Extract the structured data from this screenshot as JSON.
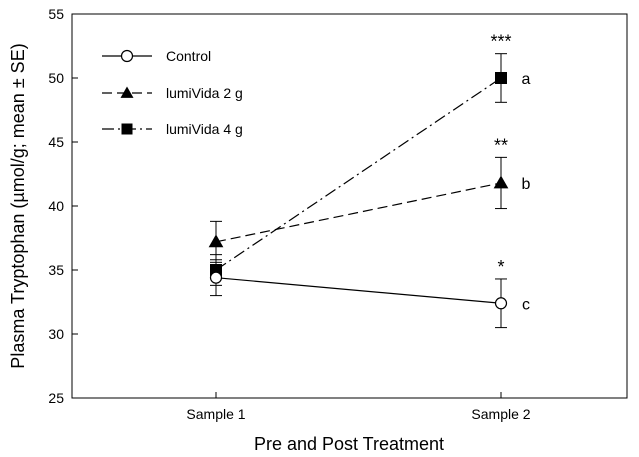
{
  "chart_data": {
    "type": "line",
    "title": "",
    "xlabel": "Pre and Post Treatment",
    "ylabel": "Plasma Tryptophan (µmol/g; mean ± SE)",
    "categories": [
      "Sample 1",
      "Sample 2"
    ],
    "ylim": [
      25,
      55
    ],
    "yticks": [
      "25",
      "30",
      "35",
      "40",
      "45",
      "50",
      "55"
    ],
    "grid": false,
    "legend_position": "top-left",
    "series": [
      {
        "name": "Control",
        "marker": "circle-open",
        "dash": "solid",
        "values": [
          34.4,
          32.4
        ],
        "se": [
          1.4,
          1.9
        ]
      },
      {
        "name": "lumiVida 2 g",
        "marker": "triangle-filled",
        "dash": "dashed",
        "values": [
          37.2,
          41.8
        ],
        "se": [
          1.6,
          2.0
        ]
      },
      {
        "name": "lumiVida 4 g",
        "marker": "square-filled",
        "dash": "dashdot",
        "values": [
          35.0,
          50.0
        ],
        "se": [
          1.2,
          1.9
        ]
      }
    ],
    "annotations": [
      {
        "category": "Sample 2",
        "series": "lumiVida 4 g",
        "stars": "***",
        "letter": "a"
      },
      {
        "category": "Sample 2",
        "series": "lumiVida 2 g",
        "stars": "**",
        "letter": "b"
      },
      {
        "category": "Sample 2",
        "series": "Control",
        "stars": "*",
        "letter": "c"
      }
    ]
  }
}
